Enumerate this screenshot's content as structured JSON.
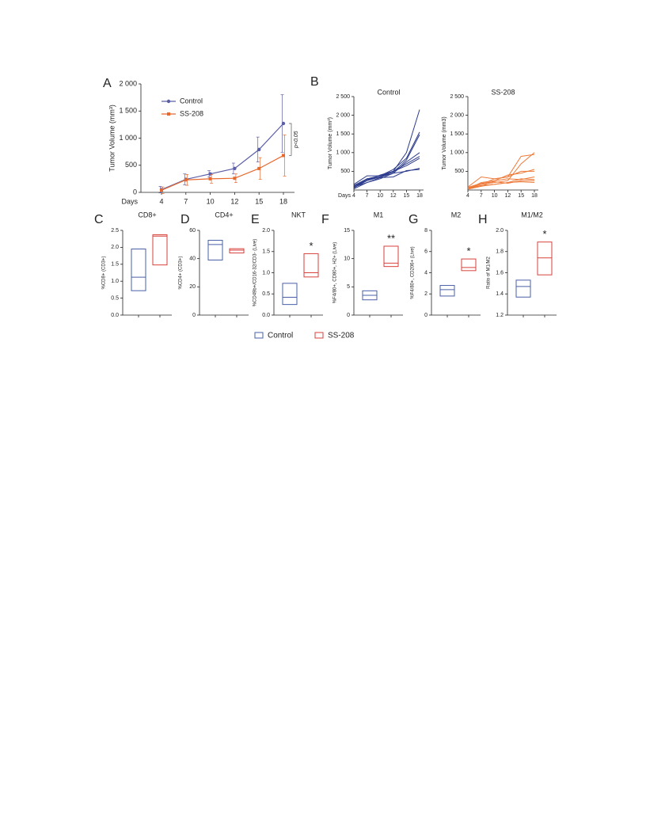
{
  "chart_data": [
    {
      "type": "line",
      "label": "A",
      "ylabel": "Tumor Volume (mm³)",
      "xlabel": "Days",
      "categories": [
        "4",
        "7",
        "10",
        "12",
        "15",
        "18"
      ],
      "ylim": [
        0,
        2000
      ],
      "yticks": [
        0,
        500,
        {
          "value": 1000,
          "label": "1 000"
        },
        {
          "value": 1500,
          "label": "1 500"
        },
        {
          "value": 2000,
          "label": "2 000"
        }
      ],
      "legend": "upper left",
      "annotation": "p<0.05",
      "series": [
        {
          "name": "Control",
          "color": "#5b5ea6",
          "values": [
            50,
            240,
            340,
            440,
            790,
            1270
          ],
          "errors": [
            60,
            100,
            60,
            100,
            230,
            530
          ]
        },
        {
          "name": "SS-208",
          "color": "#e8692e",
          "values": [
            40,
            230,
            250,
            260,
            440,
            680
          ],
          "errors": [
            60,
            100,
            80,
            80,
            200,
            380
          ]
        }
      ]
    },
    {
      "type": "line",
      "label": "B",
      "title": "Control",
      "ylabel": "Tumor Volume (mm³)",
      "xlabel": "Days",
      "color": "#2b3a8c",
      "categories": [
        "4",
        "7",
        "10",
        "12",
        "15",
        "18"
      ],
      "ylim": [
        0,
        2500
      ],
      "yticks": [
        500,
        {
          "value": 1000,
          "label": "1 000"
        },
        {
          "value": 1500,
          "label": "1 500"
        },
        {
          "value": 2000,
          "label": "2 000"
        },
        {
          "value": 2500,
          "label": "2 500"
        }
      ],
      "lines": [
        [
          100,
          250,
          350,
          500,
          1000,
          2150
        ],
        [
          50,
          300,
          380,
          550,
          850,
          1550
        ],
        [
          150,
          380,
          380,
          480,
          800,
          1480
        ],
        [
          80,
          200,
          300,
          450,
          750,
          1000
        ],
        [
          60,
          250,
          400,
          500,
          700,
          900
        ],
        [
          30,
          200,
          330,
          500,
          650,
          850
        ],
        [
          100,
          280,
          350,
          450,
          500,
          580
        ],
        [
          120,
          300,
          330,
          350,
          520,
          550
        ]
      ]
    },
    {
      "type": "line",
      "title": "SS-208",
      "ylabel": "Tumor Volume (mm3)",
      "color": "#ee7a3a",
      "categories": [
        "4",
        "7",
        "10",
        "12",
        "15",
        "18"
      ],
      "ylim": [
        0,
        2500
      ],
      "yticks": [
        500,
        {
          "value": 1000,
          "label": "1 000"
        },
        {
          "value": 1500,
          "label": "1 500"
        },
        {
          "value": 2000,
          "label": "2 000"
        },
        {
          "value": 2500,
          "label": "2 500"
        }
      ],
      "lines": [
        [
          50,
          150,
          200,
          250,
          700,
          1000
        ],
        [
          80,
          350,
          300,
          350,
          900,
          950
        ],
        [
          30,
          200,
          250,
          400,
          450,
          550
        ],
        [
          60,
          150,
          300,
          350,
          500,
          500
        ],
        [
          40,
          100,
          250,
          300,
          280,
          350
        ],
        [
          50,
          120,
          150,
          200,
          300,
          280
        ],
        [
          70,
          180,
          220,
          180,
          250,
          250
        ],
        [
          20,
          100,
          150,
          200,
          220,
          200
        ]
      ]
    },
    {
      "type": "box",
      "label": "C",
      "title": "CD8+",
      "ylabel": "%CD8+ (CD3+)",
      "ylim": [
        0,
        2.5
      ],
      "yticks": [
        {
          "value": 0,
          "label": "0.0"
        },
        0.5,
        {
          "value": 1,
          "label": "1.0"
        },
        1.5,
        {
          "value": 2,
          "label": "2.0"
        },
        2.5
      ],
      "boxes": [
        {
          "low": 0.72,
          "median": 1.12,
          "high": 1.95
        },
        {
          "low": 1.48,
          "median": 2.33,
          "high": 2.37
        }
      ]
    },
    {
      "type": "box",
      "label": "D",
      "title": "CD4+",
      "ylabel": "%CD4+ (CD3+)",
      "ylim": [
        0,
        60
      ],
      "yticks": [
        0,
        20,
        40,
        60
      ],
      "boxes": [
        {
          "low": 39,
          "median": 50,
          "high": 53
        },
        {
          "low": 44,
          "median": 46,
          "high": 47
        }
      ]
    },
    {
      "type": "box",
      "label": "E",
      "title": "NKT",
      "ylabel": "%CD49b+/CD16-32/CD3- (Live)",
      "ylim": [
        0,
        2
      ],
      "annotation": "*",
      "yticks": [
        {
          "value": 0,
          "label": "0.0"
        },
        0.5,
        {
          "value": 1,
          "label": "1.0"
        },
        1.5,
        {
          "value": 2,
          "label": "2.0"
        }
      ],
      "boxes": [
        {
          "low": 0.25,
          "median": 0.42,
          "high": 0.75
        },
        {
          "low": 0.9,
          "median": 1.0,
          "high": 1.45
        }
      ]
    },
    {
      "type": "box",
      "label": "F",
      "title": "M1",
      "ylabel": "%F4/80+, CD80+, H2+ (Live)",
      "ylim": [
        0,
        15
      ],
      "annotation": "**",
      "yticks": [
        0,
        5,
        10,
        15
      ],
      "boxes": [
        {
          "low": 2.7,
          "median": 3.5,
          "high": 4.3
        },
        {
          "low": 8.6,
          "median": 9.2,
          "high": 12.2
        }
      ]
    },
    {
      "type": "box",
      "label": "G",
      "title": "M2",
      "ylabel": "%F4/80+, CD206+ (Live)",
      "ylim": [
        0,
        8
      ],
      "annotation": "*",
      "yticks": [
        0,
        2,
        4,
        6,
        8
      ],
      "boxes": [
        {
          "low": 1.8,
          "median": 2.4,
          "high": 2.8
        },
        {
          "low": 4.2,
          "median": 4.5,
          "high": 5.3
        }
      ]
    },
    {
      "type": "box",
      "label": "H",
      "title": "M1/M2",
      "ylabel": "Ratio of M1/M2",
      "ylim": [
        1.2,
        2
      ],
      "annotation": "*",
      "yticks": [
        1.2,
        1.4,
        1.6,
        1.8,
        {
          "value": 2,
          "label": "2.0"
        }
      ],
      "boxes": [
        {
          "low": 1.37,
          "median": 1.47,
          "high": 1.53
        },
        {
          "low": 1.58,
          "median": 1.74,
          "high": 1.89
        }
      ]
    }
  ],
  "legend": [
    {
      "name": "Control",
      "color": "#4a5fa8"
    },
    {
      "name": "SS-208",
      "color": "#d8423c"
    }
  ]
}
